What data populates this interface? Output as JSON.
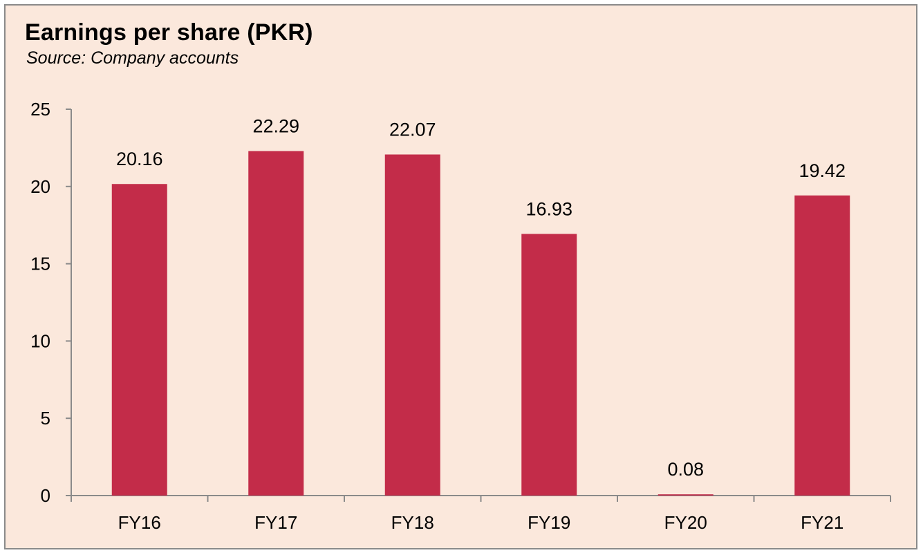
{
  "chart_data": {
    "type": "bar",
    "title": "Earnings per share (PKR)",
    "subtitle": "Source: Company accounts",
    "categories": [
      "FY16",
      "FY17",
      "FY18",
      "FY19",
      "FY20",
      "FY21"
    ],
    "values": [
      20.16,
      22.29,
      22.07,
      16.93,
      0.08,
      19.42
    ],
    "data_labels": [
      "20.16",
      "22.29",
      "22.07",
      "16.93",
      "0.08",
      "19.42"
    ],
    "xlabel": "",
    "ylabel": "",
    "ylim": [
      0,
      25
    ],
    "yticks": [
      0,
      5,
      10,
      15,
      20,
      25
    ],
    "ytick_labels": [
      "0",
      "5",
      "10",
      "15",
      "20",
      "25"
    ],
    "grid": false,
    "legend": "none",
    "bar_color": "#c32c49",
    "background_color": "#fbe8dc"
  }
}
